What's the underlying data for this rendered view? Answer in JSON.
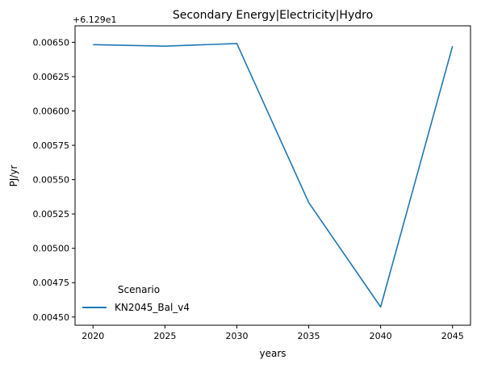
{
  "chart_data": {
    "type": "line",
    "title": "Secondary Energy|Electricity|Hydro",
    "xlabel": "years",
    "ylabel": "PJ/yr",
    "offset_label": "+6.129e1",
    "x": [
      2020,
      2025,
      2030,
      2035,
      2040,
      2045
    ],
    "xlim": [
      2018.75,
      2046.25
    ],
    "ylim": [
      0.00444,
      0.00662
    ],
    "x_ticks": [
      "2020",
      "2025",
      "2030",
      "2035",
      "2040",
      "2045"
    ],
    "y_ticks": [
      "0.00450",
      "0.00475",
      "0.00500",
      "0.00525",
      "0.00550",
      "0.00575",
      "0.00600",
      "0.00625",
      "0.00650"
    ],
    "y_tick_values": [
      0.0045,
      0.00475,
      0.005,
      0.00525,
      0.0055,
      0.00575,
      0.006,
      0.00625,
      0.0065
    ],
    "grid": false,
    "legend_title": "Scenario",
    "legend_placement": "lower-left",
    "series": [
      {
        "name": "KN2045_Bal_v4",
        "color": "#1f77b4",
        "values": [
          0.006483,
          0.006472,
          0.006491,
          0.005333,
          0.004573,
          0.006472
        ]
      }
    ]
  }
}
